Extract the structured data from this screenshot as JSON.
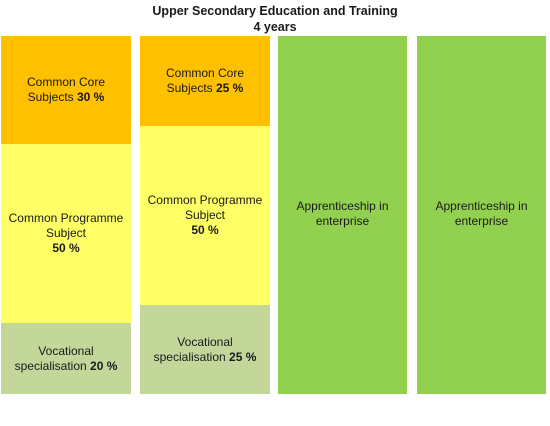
{
  "title": "Upper Secondary Education and Training",
  "subtitle": "4 years",
  "columns": [
    {
      "core": {
        "label": "Common Core Subjects",
        "pct": "30 %"
      },
      "programme": {
        "label": "Common Programme Subject",
        "pct": "50 %"
      },
      "vocational": {
        "label": "Vocational specialisation",
        "pct": "20 %"
      }
    },
    {
      "core": {
        "label": "Common Core Subjects",
        "pct": "25 %"
      },
      "programme": {
        "label": "Common Programme Subject",
        "pct": "50 %"
      },
      "vocational": {
        "label": "Vocational specialisation",
        "pct": "25 %"
      }
    },
    {
      "apprenticeship": "Apprenticeship in enterprise"
    },
    {
      "apprenticeship": "Apprenticeship in enterprise"
    }
  ],
  "colors": {
    "core": "#ffc000",
    "programme": "#ffff66",
    "vocational": "#c4d79b",
    "apprenticeship": "#92d050"
  }
}
